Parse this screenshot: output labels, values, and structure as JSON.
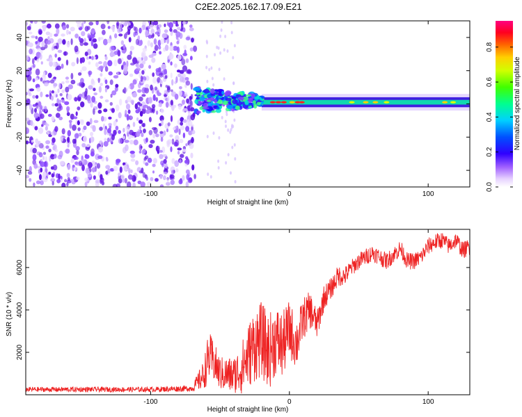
{
  "title": "C2E2.2025.162.17.09.E21",
  "chart_data": [
    {
      "type": "heatmap",
      "xlabel": "Height of straight line (km)",
      "ylabel": "Frequency (Hz)",
      "xlim": [
        -190,
        130
      ],
      "ylim": [
        -50,
        50
      ],
      "xticks": [
        -100,
        0,
        100
      ],
      "xtick_labels": [
        "-100",
        "0",
        "100"
      ],
      "yticks": [
        -40,
        -20,
        0,
        20,
        40
      ],
      "ytick_labels": [
        "-40",
        "-20",
        "0",
        "20",
        "40"
      ],
      "colorbar": {
        "label": "Normalized spectral amplitude",
        "range": [
          0,
          0.95
        ],
        "ticks": [
          0,
          0.2,
          0.4,
          0.6,
          0.8
        ],
        "tick_labels": [
          "0.0",
          "0.2",
          "0.4",
          "0.6",
          "0.8"
        ],
        "colors": [
          "#ffffff",
          "#e0c8ff",
          "#8a2be2",
          "#3000ff",
          "#0040ff",
          "#00c0ff",
          "#00ff80",
          "#40ff00",
          "#c0ff00",
          "#ffff00",
          "#ff8000",
          "#ff0000",
          "#ff0060"
        ]
      },
      "regions": [
        {
          "name": "noise",
          "x_range": [
            -190,
            -68
          ],
          "freq_range": [
            -50,
            50
          ],
          "amplitude": 0.15
        },
        {
          "name": "onset",
          "x_range": [
            -68,
            -20
          ],
          "freq_center": 2,
          "freq_halfwidth": 8,
          "amplitude": 0.35
        },
        {
          "name": "carrier",
          "x_range": [
            -20,
            130
          ],
          "freq_center": 1,
          "freq_halfwidth": 3,
          "amplitude": 0.5
        }
      ]
    },
    {
      "type": "line",
      "xlabel": "Height of straight line (km)",
      "ylabel": "SNR (10 * v/v)",
      "xlim": [
        -190,
        130
      ],
      "ylim": [
        0,
        7800
      ],
      "xticks": [
        -100,
        0,
        100
      ],
      "xtick_labels": [
        "-100",
        "0",
        "100"
      ],
      "yticks": [
        2000,
        4000,
        6000
      ],
      "ytick_labels": [
        "2000",
        "4000",
        "6000"
      ],
      "color": "#ee2222",
      "series": [
        {
          "name": "SNR",
          "x": [
            -190,
            -150,
            -100,
            -70,
            -62,
            -58,
            -55,
            -50,
            -40,
            -35,
            -25,
            -20,
            -15,
            -10,
            -5,
            0,
            5,
            10,
            15,
            20,
            25,
            30,
            35,
            40,
            45,
            50,
            55,
            60,
            65,
            70,
            75,
            80,
            85,
            90,
            95,
            100,
            105,
            110,
            115,
            120,
            125,
            130
          ],
          "y": [
            250,
            250,
            250,
            300,
            900,
            1800,
            1600,
            1000,
            900,
            1200,
            2400,
            2600,
            2000,
            2600,
            2300,
            3100,
            2400,
            3600,
            4000,
            3300,
            4600,
            5000,
            5600,
            5600,
            6000,
            6300,
            6500,
            6700,
            6500,
            6300,
            6600,
            6900,
            6300,
            6300,
            6500,
            7000,
            7200,
            7300,
            7000,
            7300,
            6800,
            7000
          ],
          "noise_amplitude": [
            120,
            120,
            120,
            150,
            700,
            1200,
            1000,
            800,
            900,
            1200,
            1800,
            1800,
            1800,
            1700,
            1600,
            1400,
            1200,
            1000,
            900,
            700,
            600,
            500,
            500,
            450,
            400,
            400,
            400,
            400,
            400,
            400,
            400,
            400,
            400,
            400,
            400,
            400,
            400,
            400,
            400,
            400,
            400,
            400
          ]
        }
      ]
    }
  ]
}
